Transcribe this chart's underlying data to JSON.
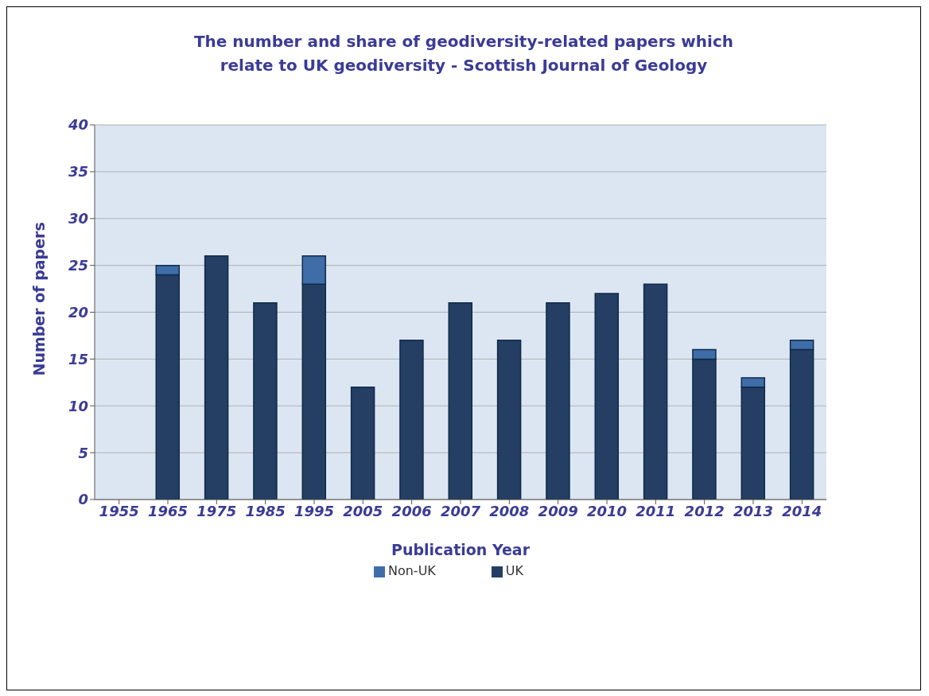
{
  "chart_data": {
    "type": "bar",
    "title": "The number and share of geodiversity-related papers which relate to UK geodiversity - Scottish Journal of Geology",
    "xlabel": "Publication Year",
    "ylabel": "Number of papers",
    "categories": [
      "1955",
      "1965",
      "1975",
      "1985",
      "1995",
      "2005",
      "2006",
      "2007",
      "2008",
      "2009",
      "2010",
      "2011",
      "2012",
      "2013",
      "2014"
    ],
    "series": [
      {
        "name": "UK",
        "color": "#243f63",
        "values": [
          0,
          24,
          26,
          21,
          23,
          12,
          17,
          21,
          17,
          21,
          22,
          23,
          15,
          12,
          16
        ]
      },
      {
        "name": "Non-UK",
        "color": "#3e6da8",
        "values": [
          0,
          1,
          0,
          0,
          3,
          0,
          0,
          0,
          0,
          0,
          0,
          0,
          1,
          1,
          1
        ]
      }
    ],
    "stacked": true,
    "ylim": [
      0,
      40
    ],
    "yticks": [
      0,
      5,
      10,
      15,
      20,
      25,
      30,
      35,
      40
    ],
    "grid": "y",
    "legend": "bottom"
  }
}
